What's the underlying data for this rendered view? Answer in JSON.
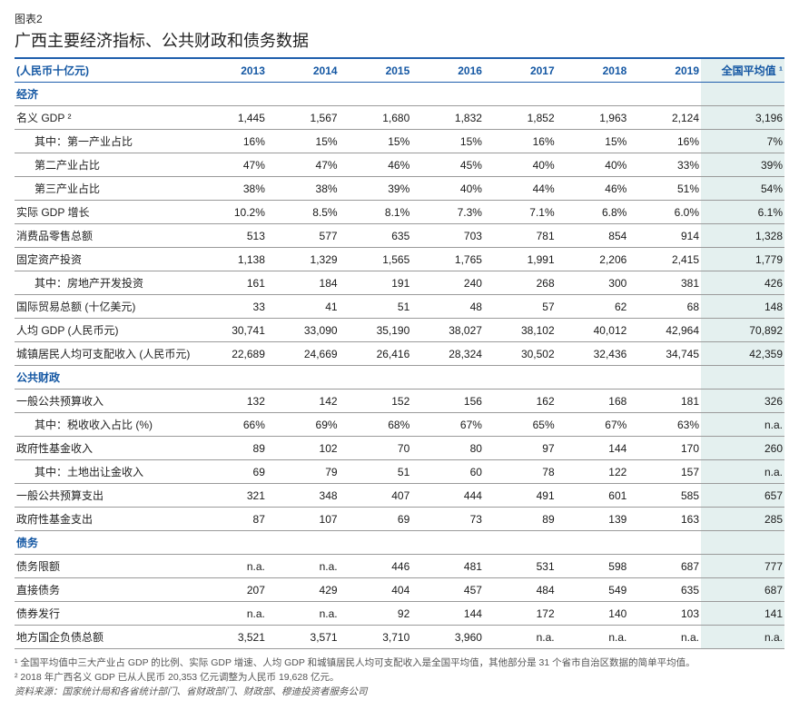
{
  "figure_label": "图表2",
  "title": "广西主要经济指标、公共财政和债务数据",
  "unit_label": "(人民币十亿元)",
  "year_headers": [
    "2013",
    "2014",
    "2015",
    "2016",
    "2017",
    "2018",
    "2019"
  ],
  "last_col_header": "全国平均值 ¹",
  "sections": [
    {
      "name": "经济",
      "rows": [
        {
          "label": "名义 GDP ²",
          "indent": false,
          "values": [
            "1,445",
            "1,567",
            "1,680",
            "1,832",
            "1,852",
            "1,963",
            "2,124"
          ],
          "avg": "3,196"
        },
        {
          "label": "其中：第一产业占比",
          "indent": true,
          "values": [
            "16%",
            "15%",
            "15%",
            "15%",
            "16%",
            "15%",
            "16%"
          ],
          "avg": "7%"
        },
        {
          "label": "第二产业占比",
          "indent": true,
          "values": [
            "47%",
            "47%",
            "46%",
            "45%",
            "40%",
            "40%",
            "33%"
          ],
          "avg": "39%"
        },
        {
          "label": "第三产业占比",
          "indent": true,
          "values": [
            "38%",
            "38%",
            "39%",
            "40%",
            "44%",
            "46%",
            "51%"
          ],
          "avg": "54%"
        },
        {
          "label": "实际 GDP 增长",
          "indent": false,
          "values": [
            "10.2%",
            "8.5%",
            "8.1%",
            "7.3%",
            "7.1%",
            "6.8%",
            "6.0%"
          ],
          "avg": "6.1%"
        },
        {
          "label": "消费品零售总额",
          "indent": false,
          "values": [
            "513",
            "577",
            "635",
            "703",
            "781",
            "854",
            "914"
          ],
          "avg": "1,328"
        },
        {
          "label": "固定资产投资",
          "indent": false,
          "values": [
            "1,138",
            "1,329",
            "1,565",
            "1,765",
            "1,991",
            "2,206",
            "2,415"
          ],
          "avg": "1,779"
        },
        {
          "label": "其中：房地产开发投资",
          "indent": true,
          "values": [
            "161",
            "184",
            "191",
            "240",
            "268",
            "300",
            "381"
          ],
          "avg": "426"
        },
        {
          "label": "国际贸易总额 (十亿美元)",
          "indent": false,
          "values": [
            "33",
            "41",
            "51",
            "48",
            "57",
            "62",
            "68"
          ],
          "avg": "148"
        },
        {
          "label": "人均 GDP (人民币元)",
          "indent": false,
          "values": [
            "30,741",
            "33,090",
            "35,190",
            "38,027",
            "38,102",
            "40,012",
            "42,964"
          ],
          "avg": "70,892"
        },
        {
          "label": "城镇居民人均可支配收入 (人民币元)",
          "indent": false,
          "values": [
            "22,689",
            "24,669",
            "26,416",
            "28,324",
            "30,502",
            "32,436",
            "34,745"
          ],
          "avg": "42,359"
        }
      ]
    },
    {
      "name": "公共财政",
      "rows": [
        {
          "label": "一般公共预算收入",
          "indent": false,
          "values": [
            "132",
            "142",
            "152",
            "156",
            "162",
            "168",
            "181"
          ],
          "avg": "326"
        },
        {
          "label": "其中：税收收入占比 (%)",
          "indent": true,
          "values": [
            "66%",
            "69%",
            "68%",
            "67%",
            "65%",
            "67%",
            "63%"
          ],
          "avg": "n.a."
        },
        {
          "label": "政府性基金收入",
          "indent": false,
          "values": [
            "89",
            "102",
            "70",
            "80",
            "97",
            "144",
            "170"
          ],
          "avg": "260"
        },
        {
          "label": "其中：土地出让金收入",
          "indent": true,
          "values": [
            "69",
            "79",
            "51",
            "60",
            "78",
            "122",
            "157"
          ],
          "avg": "n.a."
        },
        {
          "label": "一般公共预算支出",
          "indent": false,
          "values": [
            "321",
            "348",
            "407",
            "444",
            "491",
            "601",
            "585"
          ],
          "avg": "657"
        },
        {
          "label": "政府性基金支出",
          "indent": false,
          "values": [
            "87",
            "107",
            "69",
            "73",
            "89",
            "139",
            "163"
          ],
          "avg": "285"
        }
      ]
    },
    {
      "name": "债务",
      "rows": [
        {
          "label": "债务限额",
          "indent": false,
          "values": [
            "n.a.",
            "n.a.",
            "446",
            "481",
            "531",
            "598",
            "687"
          ],
          "avg": "777"
        },
        {
          "label": "直接债务",
          "indent": false,
          "values": [
            "207",
            "429",
            "404",
            "457",
            "484",
            "549",
            "635"
          ],
          "avg": "687"
        },
        {
          "label": "债券发行",
          "indent": false,
          "values": [
            "n.a.",
            "n.a.",
            "92",
            "144",
            "172",
            "140",
            "103"
          ],
          "avg": "141"
        },
        {
          "label": "地方国企负债总额",
          "indent": false,
          "values": [
            "3,521",
            "3,571",
            "3,710",
            "3,960",
            "n.a.",
            "n.a.",
            "n.a."
          ],
          "avg": "n.a."
        }
      ]
    }
  ],
  "footnotes": [
    "¹ 全国平均值中三大产业占 GDP 的比例、实际 GDP 增速、人均 GDP 和城镇居民人均可支配收入是全国平均值，其他部分是 31 个省市自治区数据的简单平均值。",
    "² 2018 年广西名义 GDP 已从人民币 20,353 亿元调整为人民币 19,628 亿元。"
  ],
  "source": "资料来源：国家统计局和各省统计部门、省财政部门、财政部、穆迪投资者服务公司",
  "colors": {
    "heading_blue": "#1457a3",
    "rule_blue": "#1f5fad",
    "avg_col_bg": "#e4f0ef",
    "body_text": "#222222",
    "footnote_text": "#555555",
    "row_border": "#9a9a9a"
  },
  "fontsizes": {
    "title_pt": 18,
    "body_pt": 12,
    "footnote_pt": 10.5
  }
}
